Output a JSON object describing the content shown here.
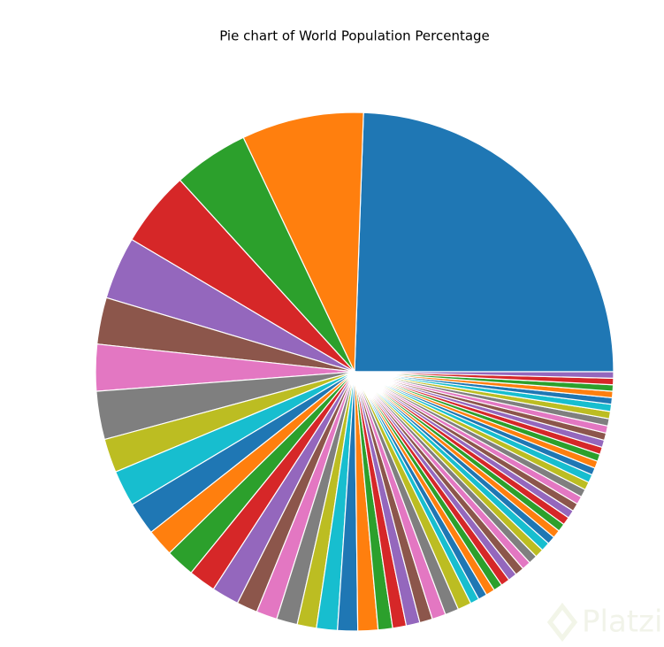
{
  "chart_data": {
    "type": "pie",
    "title": "Pie chart of World Population Percentage",
    "values": [
      24.4,
      7.6,
      4.7,
      4.7,
      3.9,
      2.9,
      2.9,
      3.0,
      2.1,
      2.25,
      2.05,
      1.7,
      1.8,
      1.7,
      1.7,
      1.3,
      1.3,
      1.3,
      1.2,
      1.3,
      1.25,
      1.25,
      0.9,
      0.85,
      0.85,
      0.8,
      0.85,
      0.85,
      0.85,
      0.55,
      0.55,
      0.55,
      0.55,
      0.55,
      0.55,
      0.55,
      0.55,
      0.55,
      0.55,
      0.55,
      0.5,
      0.5,
      0.5,
      0.5,
      0.5,
      0.5,
      0.5,
      0.5,
      0.5,
      0.5,
      0.45,
      0.45,
      0.45,
      0.45,
      0.45,
      0.45,
      0.45,
      0.45,
      0.45,
      0.45,
      0.4,
      0.4,
      0.4,
      0.4,
      0.4
    ],
    "colors": [
      "#1f77b4",
      "#ff7f0e",
      "#2ca02c",
      "#d62728",
      "#9467bd",
      "#8c564b",
      "#e377c2",
      "#7f7f7f",
      "#bcbd22",
      "#17becf"
    ],
    "start_angle": 0,
    "counterclock": true
  },
  "watermark": "Platzi"
}
